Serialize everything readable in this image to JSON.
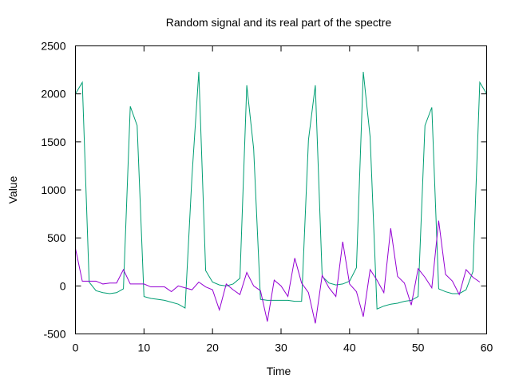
{
  "chart_data": {
    "type": "line",
    "title": "Random signal and its real part of the spectre",
    "xlabel": "Time",
    "ylabel": "Value",
    "xlim": [
      0,
      60
    ],
    "ylim": [
      -500,
      2500
    ],
    "x_ticks": [
      "0",
      "10",
      "20",
      "30",
      "40",
      "50",
      "60"
    ],
    "y_ticks": [
      "-500",
      "0",
      "500",
      "1000",
      "1500",
      "2000",
      "2500"
    ],
    "grid": false,
    "legend": "none",
    "series": [
      {
        "color": "#009E73",
        "x": [
          0,
          1,
          2,
          3,
          4,
          5,
          6,
          7,
          8,
          9,
          10,
          11,
          12,
          13,
          14,
          15,
          16,
          17,
          18,
          19,
          20,
          21,
          22,
          23,
          24,
          25,
          26,
          27,
          28,
          29,
          30,
          31,
          32,
          33,
          34,
          35,
          36,
          37,
          38,
          39,
          40,
          41,
          42,
          43,
          44,
          45,
          46,
          47,
          48,
          49,
          50,
          51,
          52,
          53,
          54,
          55,
          56,
          57,
          58,
          59,
          60
        ],
        "values": [
          2000,
          2120,
          40,
          -50,
          -70,
          -80,
          -70,
          -30,
          1870,
          1670,
          -110,
          -130,
          -140,
          -150,
          -170,
          -190,
          -230,
          1140,
          2230,
          160,
          40,
          10,
          0,
          20,
          80,
          2090,
          1430,
          -140,
          -150,
          -150,
          -150,
          -150,
          -160,
          -160,
          1520,
          2090,
          100,
          30,
          10,
          20,
          50,
          190,
          2230,
          1550,
          -240,
          -210,
          -190,
          -180,
          -160,
          -150,
          -110,
          1670,
          1860,
          -30,
          -60,
          -80,
          -80,
          -40,
          150,
          2120,
          2000
        ]
      },
      {
        "color": "#9400D3",
        "x": [
          0,
          1,
          2,
          3,
          4,
          5,
          6,
          7,
          8,
          9,
          10,
          11,
          12,
          13,
          14,
          15,
          16,
          17,
          18,
          19,
          20,
          21,
          22,
          23,
          24,
          25,
          26,
          27,
          28,
          29,
          30,
          31,
          32,
          33,
          34,
          35,
          36,
          37,
          38,
          39,
          40,
          41,
          42,
          43,
          44,
          45,
          46,
          47,
          48,
          49,
          50,
          51,
          52,
          53,
          54,
          55,
          56,
          57,
          58,
          59
        ],
        "values": [
          390,
          50,
          50,
          50,
          20,
          30,
          30,
          170,
          20,
          20,
          20,
          -10,
          -10,
          -10,
          -60,
          0,
          -20,
          -40,
          40,
          -10,
          -40,
          -250,
          20,
          -40,
          -90,
          140,
          0,
          -50,
          -370,
          60,
          0,
          -110,
          290,
          30,
          -70,
          -390,
          110,
          -20,
          -110,
          460,
          20,
          -60,
          -320,
          170,
          60,
          -70,
          600,
          100,
          30,
          -200,
          180,
          90,
          -20,
          680,
          120,
          50,
          -90,
          170,
          90,
          40
        ]
      }
    ]
  }
}
